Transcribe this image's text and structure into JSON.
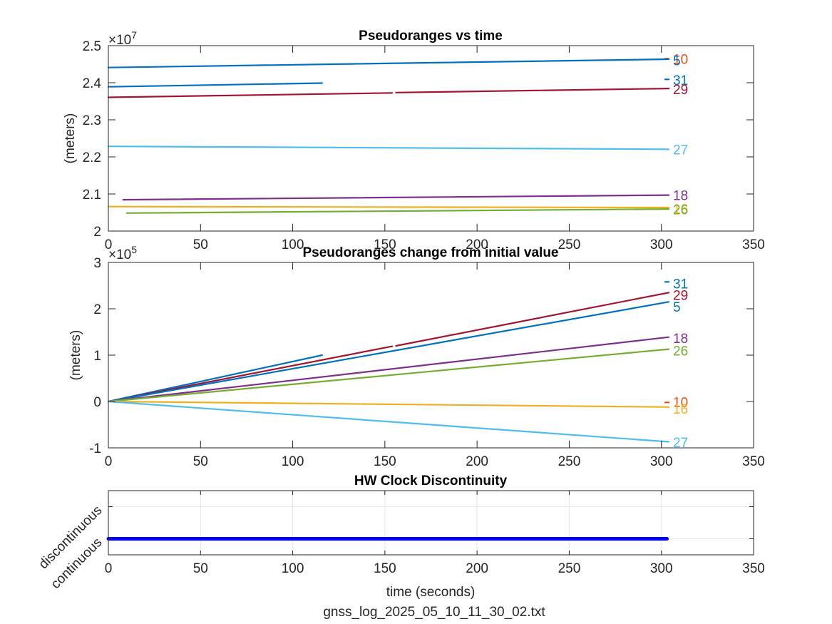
{
  "figure": {
    "footer_label": "gnss_log_2025_05_10_11_30_02.txt"
  },
  "chart_data": [
    {
      "type": "line",
      "title": "Pseudoranges vs time",
      "xlabel": "",
      "ylabel": "(meters)",
      "xlim": [
        0,
        350
      ],
      "ylim": [
        2.0,
        2.5
      ],
      "exponent_label": "×10",
      "exponent_power": "7",
      "xticks": [
        0,
        50,
        100,
        150,
        200,
        250,
        300,
        350
      ],
      "yticks": [
        2,
        2.1,
        2.2,
        2.3,
        2.4,
        2.5
      ],
      "ytick_labels": [
        "2",
        "2.1",
        "2.2",
        "2.3",
        "2.4",
        "2.5"
      ],
      "grid": false,
      "series": [
        {
          "name": "10",
          "color": "#D95319",
          "segments": [
            [
              [
                302,
                2.465
              ],
              [
                304,
                2.465
              ]
            ]
          ],
          "label_y": 2.464
        },
        {
          "name": "5",
          "color": "#0072BD",
          "segments": [
            [
              [
                0,
                2.441
              ],
              [
                304,
                2.4635
              ]
            ]
          ],
          "label_y": 2.4605
        },
        {
          "name": "31",
          "color": "#0072BD",
          "segments": [
            [
              [
                0,
                2.389
              ],
              [
                116,
                2.399
              ]
            ],
            [
              [
                302,
                2.409
              ],
              [
                304,
                2.409
              ]
            ]
          ],
          "label_y": 2.4075
        },
        {
          "name": "29",
          "color": "#A2142F",
          "segments": [
            [
              [
                0,
                2.3605
              ],
              [
                154,
                2.3725
              ]
            ],
            [
              [
                156,
                2.3735
              ],
              [
                304,
                2.3845
              ]
            ]
          ],
          "label_y": 2.3825
        },
        {
          "name": "27",
          "color": "#4DBEEE",
          "segments": [
            [
              [
                0,
                2.2285
              ],
              [
                304,
                2.2205
              ]
            ]
          ],
          "label_y": 2.2205
        },
        {
          "name": "18",
          "color": "#7E2F8E",
          "segments": [
            [
              [
                8,
                2.0845
              ],
              [
                304,
                2.097
              ]
            ]
          ],
          "label_y": 2.097
        },
        {
          "name": "16",
          "color": "#EDB120",
          "segments": [
            [
              [
                0,
                2.066
              ],
              [
                304,
                2.0635
              ]
            ]
          ],
          "label_y": 2.0605
        },
        {
          "name": "26",
          "color": "#77AC30",
          "segments": [
            [
              [
                10,
                2.0485
              ],
              [
                304,
                2.0595
              ]
            ]
          ],
          "label_y": 2.059
        }
      ]
    },
    {
      "type": "line",
      "title": "Pseudoranges change from initial value",
      "xlabel": "",
      "ylabel": "(meters)",
      "xlim": [
        0,
        350
      ],
      "ylim": [
        -1,
        3
      ],
      "exponent_label": "×10",
      "exponent_power": "5",
      "xticks": [
        0,
        50,
        100,
        150,
        200,
        250,
        300,
        350
      ],
      "yticks": [
        -1,
        0,
        1,
        2,
        3
      ],
      "ytick_labels": [
        "-1",
        "0",
        "1",
        "2",
        "3"
      ],
      "grid": false,
      "series": [
        {
          "name": "31",
          "color": "#0072BD",
          "segments": [
            [
              [
                0,
                0
              ],
              [
                116,
                1.0
              ]
            ],
            [
              [
                302,
                2.58
              ],
              [
                304,
                2.58
              ]
            ]
          ],
          "label_y": 2.55
        },
        {
          "name": "29",
          "color": "#A2142F",
          "segments": [
            [
              [
                0,
                0
              ],
              [
                154,
                1.19
              ]
            ],
            [
              [
                156,
                1.2
              ],
              [
                304,
                2.35
              ]
            ]
          ],
          "label_y": 2.3
        },
        {
          "name": "5",
          "color": "#0072BD",
          "segments": [
            [
              [
                0,
                0
              ],
              [
                304,
                2.15
              ]
            ]
          ],
          "label_y": 2.05
        },
        {
          "name": "18",
          "color": "#7E2F8E",
          "segments": [
            [
              [
                0,
                0
              ],
              [
                304,
                1.39
              ]
            ]
          ],
          "label_y": 1.37
        },
        {
          "name": "26",
          "color": "#77AC30",
          "segments": [
            [
              [
                0,
                0
              ],
              [
                304,
                1.13
              ]
            ]
          ],
          "label_y": 1.1
        },
        {
          "name": "10",
          "color": "#D95319",
          "segments": [
            [
              [
                302,
                -0.02
              ],
              [
                304,
                -0.02
              ]
            ]
          ],
          "label_y": -0.01
        },
        {
          "name": "16",
          "color": "#EDB120",
          "segments": [
            [
              [
                0,
                0
              ],
              [
                304,
                -0.12
              ]
            ]
          ],
          "label_y": -0.15
        },
        {
          "name": "27",
          "color": "#4DBEEE",
          "segments": [
            [
              [
                0,
                0
              ],
              [
                304,
                -0.87
              ]
            ]
          ],
          "label_y": -0.88
        }
      ]
    },
    {
      "type": "line",
      "title": "HW Clock Discontinuity",
      "xlabel": "time (seconds)",
      "ylabel": "",
      "xlim": [
        0,
        350
      ],
      "ylim": [
        -0.5,
        1.5
      ],
      "xticks": [
        0,
        50,
        100,
        150,
        200,
        250,
        300,
        350
      ],
      "yticks": [
        0,
        1
      ],
      "ytick_labels": [
        "continuous",
        "discontinuous"
      ],
      "grid": true,
      "series": [
        {
          "name": "discontinuity",
          "color": "#0000FF",
          "segments": [
            [
              [
                0,
                0
              ],
              [
                303,
                0
              ]
            ]
          ]
        }
      ]
    }
  ]
}
